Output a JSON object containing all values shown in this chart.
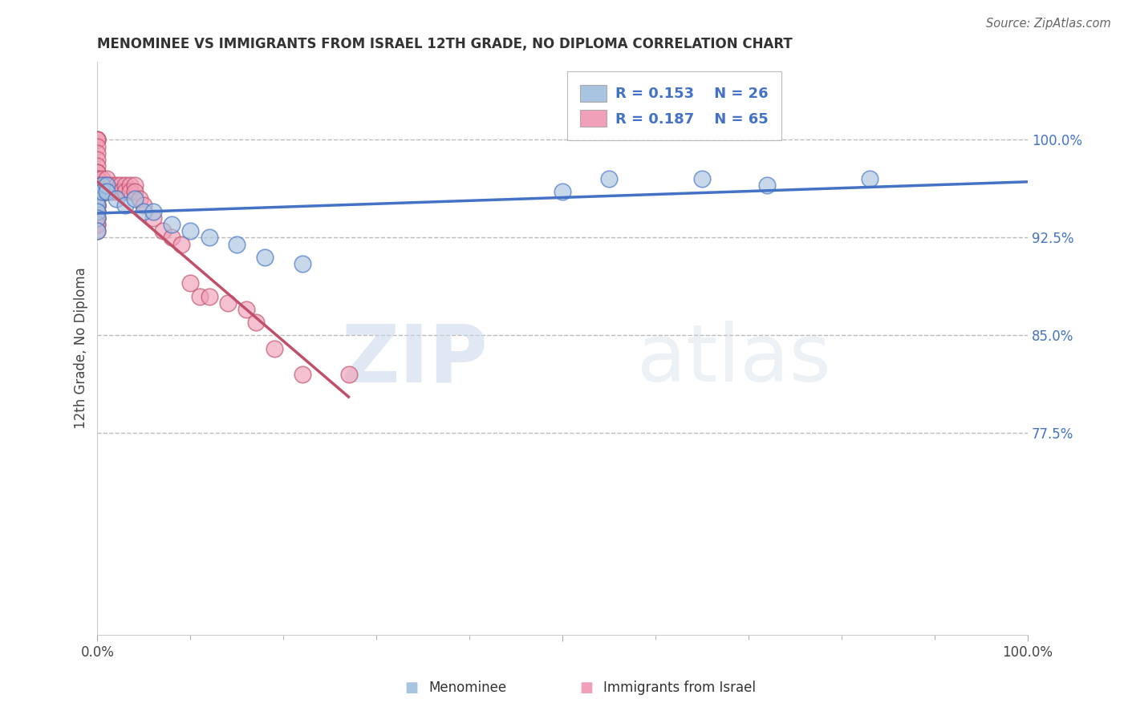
{
  "title": "MENOMINEE VS IMMIGRANTS FROM ISRAEL 12TH GRADE, NO DIPLOMA CORRELATION CHART",
  "source": "Source: ZipAtlas.com",
  "ylabel": "12th Grade, No Diploma",
  "ytick_labels": [
    "100.0%",
    "92.5%",
    "85.0%",
    "77.5%"
  ],
  "ytick_values": [
    1.0,
    0.925,
    0.85,
    0.775
  ],
  "xlim": [
    0.0,
    1.0
  ],
  "ylim": [
    0.62,
    1.06
  ],
  "legend_r_blue": "R = 0.153",
  "legend_n_blue": "N = 26",
  "legend_r_pink": "R = 0.187",
  "legend_n_pink": "N = 65",
  "legend_label_blue": "Menominee",
  "legend_label_pink": "Immigrants from Israel",
  "color_blue": "#a8c4e0",
  "color_pink": "#f0a0b8",
  "color_blue_line": "#4472c4",
  "color_pink_line": "#c0506a",
  "color_text_blue": "#4472c4",
  "menominee_x": [
    0.0,
    0.0,
    0.0,
    0.0,
    0.0,
    0.0,
    0.005,
    0.005,
    0.01,
    0.01,
    0.02,
    0.03,
    0.04,
    0.05,
    0.06,
    0.08,
    0.1,
    0.12,
    0.15,
    0.18,
    0.22,
    0.5,
    0.55,
    0.65,
    0.72,
    0.83
  ],
  "menominee_y": [
    0.96,
    0.955,
    0.95,
    0.945,
    0.94,
    0.93,
    0.965,
    0.96,
    0.965,
    0.96,
    0.955,
    0.95,
    0.955,
    0.945,
    0.945,
    0.935,
    0.93,
    0.925,
    0.92,
    0.91,
    0.905,
    0.96,
    0.97,
    0.97,
    0.965,
    0.97
  ],
  "israel_x": [
    0.0,
    0.0,
    0.0,
    0.0,
    0.0,
    0.0,
    0.0,
    0.0,
    0.0,
    0.0,
    0.0,
    0.0,
    0.0,
    0.0,
    0.0,
    0.0,
    0.0,
    0.0,
    0.0,
    0.0,
    0.0,
    0.0,
    0.0,
    0.0,
    0.0,
    0.0,
    0.0,
    0.0,
    0.0,
    0.0,
    0.005,
    0.005,
    0.005,
    0.005,
    0.005,
    0.01,
    0.01,
    0.01,
    0.015,
    0.015,
    0.02,
    0.02,
    0.025,
    0.025,
    0.03,
    0.03,
    0.035,
    0.035,
    0.04,
    0.04,
    0.045,
    0.05,
    0.06,
    0.07,
    0.08,
    0.09,
    0.1,
    0.11,
    0.12,
    0.14,
    0.16,
    0.17,
    0.19,
    0.22,
    0.27
  ],
  "israel_y": [
    1.0,
    1.0,
    1.0,
    0.995,
    0.99,
    0.985,
    0.98,
    0.975,
    0.975,
    0.97,
    0.97,
    0.965,
    0.965,
    0.965,
    0.96,
    0.96,
    0.96,
    0.955,
    0.955,
    0.955,
    0.95,
    0.95,
    0.95,
    0.945,
    0.945,
    0.94,
    0.94,
    0.935,
    0.935,
    0.93,
    0.97,
    0.965,
    0.965,
    0.96,
    0.96,
    0.97,
    0.965,
    0.96,
    0.965,
    0.96,
    0.965,
    0.96,
    0.965,
    0.96,
    0.965,
    0.96,
    0.965,
    0.96,
    0.965,
    0.96,
    0.955,
    0.95,
    0.94,
    0.93,
    0.925,
    0.92,
    0.89,
    0.88,
    0.88,
    0.875,
    0.87,
    0.86,
    0.84,
    0.82,
    0.82
  ],
  "watermark_zip": "ZIP",
  "watermark_atlas": "atlas",
  "background_color": "#ffffff",
  "grid_color": "#cccccc",
  "dashed_line_color": "#bbbbbb"
}
